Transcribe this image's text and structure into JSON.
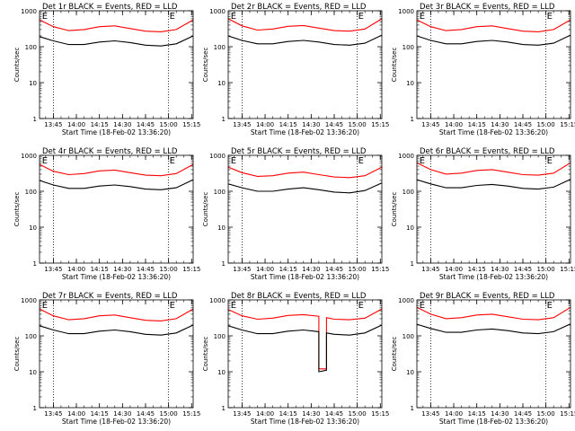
{
  "figure": {
    "panel_title_suffix": "BLACK = Events, RED = LLD",
    "ylabel": "Counts/sec",
    "xlabel": "Start Time (18-Feb-02 13:36:20)",
    "x_tick_labels": [
      "13:45",
      "14:00",
      "14:15",
      "14:30",
      "14:45",
      "15:00",
      "15:15"
    ],
    "y_tick_labels": [
      "1",
      "10",
      "100",
      "1000"
    ],
    "marker_label": "E",
    "colors": {
      "events": "#000000",
      "lld": "#ff0000",
      "axes": "#000000"
    }
  },
  "chart_data": [
    {
      "type": "line",
      "title": "Det 1r BLACK = Events, RED = LLD",
      "detector": "Det 1r",
      "xlabel": "Start Time (18-Feb-02 13:36:20)",
      "ylabel": "Counts/sec",
      "yscale": "log",
      "ylim": [
        1,
        1000
      ],
      "xlim": [
        "13:36",
        "15:16"
      ],
      "x_ticks": [
        "13:45",
        "14:00",
        "14:15",
        "14:30",
        "14:45",
        "15:00",
        "15:15"
      ],
      "y_ticks": [
        1,
        10,
        100,
        1000
      ],
      "vlines": [
        "13:45",
        "15:00"
      ],
      "markers": [
        {
          "label": "E",
          "x": "13:37"
        },
        {
          "label": "E",
          "x": "15:00"
        }
      ],
      "x": [
        "13:36",
        "13:45",
        "13:55",
        "14:05",
        "14:15",
        "14:25",
        "14:35",
        "14:45",
        "14:55",
        "15:05",
        "15:16"
      ],
      "series": [
        {
          "name": "LLD",
          "color": "red",
          "values": [
            560,
            360,
            280,
            300,
            360,
            380,
            320,
            270,
            260,
            300,
            560
          ]
        },
        {
          "name": "Events",
          "color": "black",
          "values": [
            190,
            145,
            115,
            115,
            135,
            145,
            130,
            110,
            105,
            120,
            200
          ]
        }
      ]
    },
    {
      "type": "line",
      "title": "Det 2r BLACK = Events, RED = LLD",
      "detector": "Det 2r",
      "xlabel": "Start Time (18-Feb-02 13:36:20)",
      "ylabel": "Counts/sec",
      "yscale": "log",
      "ylim": [
        1,
        1000
      ],
      "xlim": [
        "13:36",
        "15:16"
      ],
      "x_ticks": [
        "13:45",
        "14:00",
        "14:15",
        "14:30",
        "14:45",
        "15:00",
        "15:15"
      ],
      "y_ticks": [
        1,
        10,
        100,
        1000
      ],
      "vlines": [
        "13:45",
        "15:00"
      ],
      "markers": [
        {
          "label": "E",
          "x": "13:37"
        },
        {
          "label": "E",
          "x": "15:00"
        }
      ],
      "x": [
        "13:36",
        "13:45",
        "13:55",
        "14:05",
        "14:15",
        "14:25",
        "14:35",
        "14:45",
        "14:55",
        "15:05",
        "15:16"
      ],
      "series": [
        {
          "name": "LLD",
          "color": "red",
          "values": [
            600,
            380,
            290,
            310,
            370,
            390,
            330,
            280,
            270,
            310,
            600
          ]
        },
        {
          "name": "Events",
          "color": "black",
          "values": [
            200,
            150,
            120,
            120,
            140,
            150,
            135,
            115,
            110,
            125,
            210
          ]
        }
      ]
    },
    {
      "type": "line",
      "title": "Det 3r BLACK = Events, RED = LLD",
      "detector": "Det 3r",
      "xlabel": "Start Time (18-Feb-02 13:36:20)",
      "ylabel": "Counts/sec",
      "yscale": "log",
      "ylim": [
        1,
        1000
      ],
      "xlim": [
        "13:36",
        "15:16"
      ],
      "x_ticks": [
        "13:45",
        "14:00",
        "14:15",
        "14:30",
        "14:45",
        "15:00",
        "15:15"
      ],
      "y_ticks": [
        1,
        10,
        100,
        1000
      ],
      "vlines": [
        "13:45",
        "15:00"
      ],
      "markers": [
        {
          "label": "E",
          "x": "13:37"
        },
        {
          "label": "E",
          "x": "15:00"
        }
      ],
      "x": [
        "13:36",
        "13:45",
        "13:55",
        "14:05",
        "14:15",
        "14:25",
        "14:35",
        "14:45",
        "14:55",
        "15:05",
        "15:16"
      ],
      "series": [
        {
          "name": "LLD",
          "color": "red",
          "values": [
            560,
            360,
            280,
            300,
            360,
            380,
            320,
            270,
            260,
            300,
            560
          ]
        },
        {
          "name": "Events",
          "color": "black",
          "values": [
            200,
            150,
            120,
            120,
            140,
            150,
            135,
            115,
            110,
            125,
            210
          ]
        }
      ]
    },
    {
      "type": "line",
      "title": "Det 4r BLACK = Events, RED = LLD",
      "detector": "Det 4r",
      "xlabel": "Start Time (18-Feb-02 13:36:20)",
      "ylabel": "Counts/sec",
      "yscale": "log",
      "ylim": [
        1,
        1000
      ],
      "xlim": [
        "13:36",
        "15:16"
      ],
      "x_ticks": [
        "13:45",
        "14:00",
        "14:15",
        "14:30",
        "14:45",
        "15:00",
        "15:15"
      ],
      "y_ticks": [
        1,
        10,
        100,
        1000
      ],
      "vlines": [
        "13:45",
        "15:00"
      ],
      "markers": [
        {
          "label": "E",
          "x": "13:37"
        },
        {
          "label": "E",
          "x": "15:00"
        }
      ],
      "x": [
        "13:36",
        "13:45",
        "13:55",
        "14:05",
        "14:15",
        "14:25",
        "14:35",
        "14:45",
        "14:55",
        "15:05",
        "15:16"
      ],
      "series": [
        {
          "name": "LLD",
          "color": "red",
          "values": [
            560,
            360,
            290,
            310,
            370,
            390,
            330,
            280,
            270,
            310,
            560
          ]
        },
        {
          "name": "Events",
          "color": "black",
          "values": [
            200,
            150,
            120,
            120,
            140,
            150,
            135,
            115,
            110,
            125,
            210
          ]
        }
      ]
    },
    {
      "type": "line",
      "title": "Det 5r BLACK = Events, RED = LLD",
      "detector": "Det 5r",
      "xlabel": "Start Time (18-Feb-02 13:36:20)",
      "ylabel": "Counts/sec",
      "yscale": "log",
      "ylim": [
        1,
        1000
      ],
      "xlim": [
        "13:36",
        "15:16"
      ],
      "x_ticks": [
        "13:45",
        "14:00",
        "14:15",
        "14:30",
        "14:45",
        "15:00",
        "15:15"
      ],
      "y_ticks": [
        1,
        10,
        100,
        1000
      ],
      "vlines": [
        "13:45",
        "15:00"
      ],
      "markers": [
        {
          "label": "E",
          "x": "13:37"
        },
        {
          "label": "E",
          "x": "15:00"
        }
      ],
      "x": [
        "13:36",
        "13:45",
        "13:55",
        "14:05",
        "14:15",
        "14:25",
        "14:35",
        "14:45",
        "14:55",
        "15:05",
        "15:16"
      ],
      "series": [
        {
          "name": "LLD",
          "color": "red",
          "values": [
            470,
            330,
            260,
            270,
            320,
            340,
            290,
            250,
            240,
            270,
            470
          ]
        },
        {
          "name": "Events",
          "color": "black",
          "values": [
            160,
            125,
            100,
            100,
            115,
            125,
            110,
            95,
            90,
            105,
            170
          ]
        }
      ]
    },
    {
      "type": "line",
      "title": "Det 6r BLACK = Events, RED = LLD",
      "detector": "Det 6r",
      "xlabel": "Start Time (18-Feb-02 13:36:20)",
      "ylabel": "Counts/sec",
      "yscale": "log",
      "ylim": [
        1,
        1000
      ],
      "xlim": [
        "13:36",
        "15:16"
      ],
      "x_ticks": [
        "13:45",
        "14:00",
        "14:15",
        "14:30",
        "14:45",
        "15:00",
        "15:15"
      ],
      "y_ticks": [
        1,
        10,
        100,
        1000
      ],
      "vlines": [
        "13:45",
        "15:00"
      ],
      "markers": [
        {
          "label": "E",
          "x": "13:37"
        },
        {
          "label": "E",
          "x": "15:00"
        }
      ],
      "x": [
        "13:36",
        "13:45",
        "13:55",
        "14:05",
        "14:15",
        "14:25",
        "14:35",
        "14:45",
        "14:55",
        "15:05",
        "15:16"
      ],
      "series": [
        {
          "name": "LLD",
          "color": "red",
          "values": [
            620,
            400,
            300,
            320,
            380,
            400,
            340,
            290,
            280,
            320,
            620
          ]
        },
        {
          "name": "Events",
          "color": "black",
          "values": [
            210,
            160,
            125,
            125,
            145,
            155,
            140,
            120,
            115,
            130,
            215
          ]
        }
      ]
    },
    {
      "type": "line",
      "title": "Det 7r BLACK = Events, RED = LLD",
      "detector": "Det 7r",
      "xlabel": "Start Time (18-Feb-02 13:36:20)",
      "ylabel": "Counts/sec",
      "yscale": "log",
      "ylim": [
        1,
        1000
      ],
      "xlim": [
        "13:36",
        "15:16"
      ],
      "x_ticks": [
        "13:45",
        "14:00",
        "14:15",
        "14:30",
        "14:45",
        "15:00",
        "15:15"
      ],
      "y_ticks": [
        1,
        10,
        100,
        1000
      ],
      "vlines": [
        "13:45",
        "15:00"
      ],
      "markers": [
        {
          "label": "E",
          "x": "13:37"
        },
        {
          "label": "E",
          "x": "15:00"
        }
      ],
      "x": [
        "13:36",
        "13:45",
        "13:55",
        "14:05",
        "14:15",
        "14:25",
        "14:35",
        "14:45",
        "14:55",
        "15:05",
        "15:16"
      ],
      "series": [
        {
          "name": "LLD",
          "color": "red",
          "values": [
            560,
            360,
            280,
            300,
            360,
            380,
            320,
            270,
            260,
            300,
            560
          ]
        },
        {
          "name": "Events",
          "color": "black",
          "values": [
            190,
            145,
            115,
            115,
            135,
            145,
            130,
            110,
            105,
            120,
            200
          ]
        }
      ]
    },
    {
      "type": "line",
      "title": "Det 8r BLACK = Events, RED = LLD",
      "detector": "Det 8r",
      "xlabel": "Start Time (18-Feb-02 13:36:20)",
      "ylabel": "Counts/sec",
      "yscale": "log",
      "ylim": [
        1,
        1000
      ],
      "xlim": [
        "13:36",
        "15:16"
      ],
      "x_ticks": [
        "13:45",
        "14:00",
        "14:15",
        "14:30",
        "14:45",
        "15:00",
        "15:15"
      ],
      "y_ticks": [
        1,
        10,
        100,
        1000
      ],
      "vlines": [
        "13:45",
        "15:00"
      ],
      "markers": [
        {
          "label": "E",
          "x": "13:37"
        },
        {
          "label": "E",
          "x": "15:00"
        }
      ],
      "x": [
        "13:36",
        "13:45",
        "13:55",
        "14:05",
        "14:15",
        "14:25",
        "14:35",
        "14:35",
        "14:40",
        "14:40",
        "14:45",
        "14:55",
        "15:05",
        "15:16"
      ],
      "series": [
        {
          "name": "LLD",
          "color": "red",
          "values": [
            540,
            360,
            290,
            310,
            370,
            390,
            350,
            12,
            12,
            320,
            290,
            280,
            310,
            560
          ]
        },
        {
          "name": "Events",
          "color": "black",
          "values": [
            190,
            145,
            115,
            115,
            135,
            145,
            130,
            10,
            11,
            120,
            110,
            105,
            120,
            200
          ]
        }
      ]
    },
    {
      "type": "line",
      "title": "Det 9r BLACK = Events, RED = LLD",
      "detector": "Det 9r",
      "xlabel": "Start Time (18-Feb-02 13:36:20)",
      "ylabel": "Counts/sec",
      "yscale": "log",
      "ylim": [
        1,
        1000
      ],
      "xlim": [
        "13:36",
        "15:16"
      ],
      "x_ticks": [
        "13:45",
        "14:00",
        "14:15",
        "14:30",
        "14:45",
        "15:00",
        "15:15"
      ],
      "y_ticks": [
        1,
        10,
        100,
        1000
      ],
      "vlines": [
        "13:45",
        "15:00"
      ],
      "markers": [
        {
          "label": "E",
          "x": "13:37"
        },
        {
          "label": "E",
          "x": "15:00"
        }
      ],
      "x": [
        "13:36",
        "13:45",
        "13:55",
        "14:05",
        "14:15",
        "14:25",
        "14:35",
        "14:45",
        "14:55",
        "15:05",
        "15:16"
      ],
      "series": [
        {
          "name": "LLD",
          "color": "red",
          "values": [
            620,
            400,
            300,
            320,
            380,
            400,
            340,
            290,
            280,
            320,
            620
          ]
        },
        {
          "name": "Events",
          "color": "black",
          "values": [
            210,
            160,
            125,
            125,
            145,
            155,
            140,
            120,
            115,
            130,
            215
          ]
        }
      ]
    }
  ]
}
